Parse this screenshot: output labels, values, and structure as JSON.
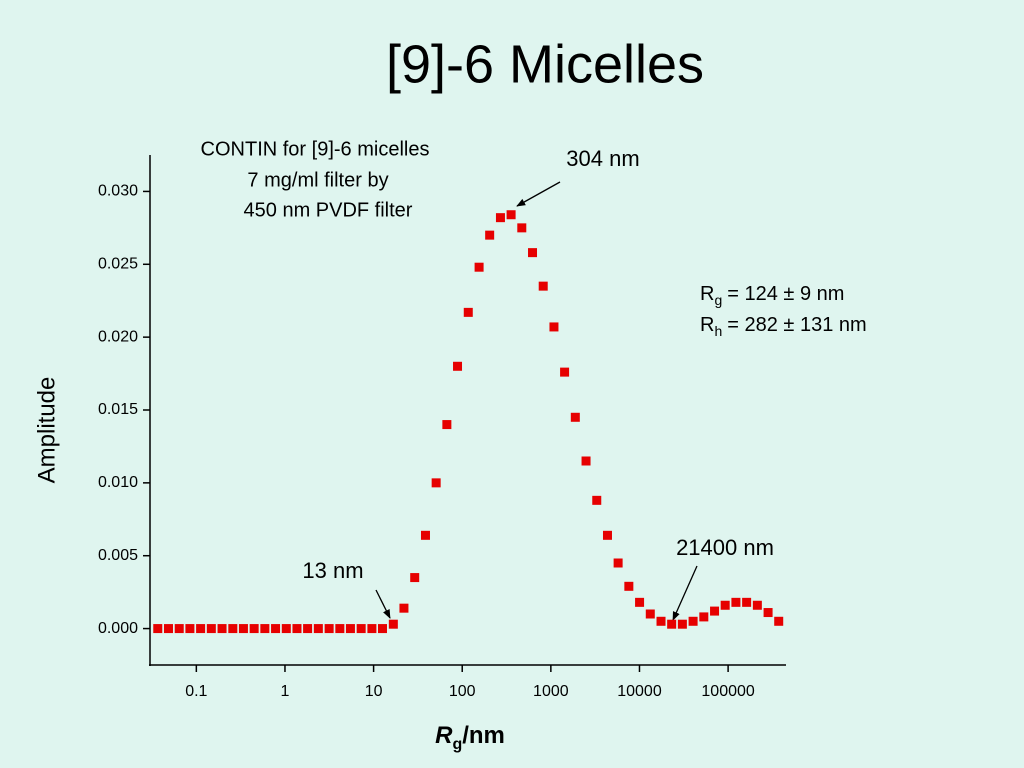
{
  "chart_data": {
    "type": "scatter",
    "title": "[9]-6 Micelles",
    "y_label": "Amplitude",
    "x_label": {
      "symbol": "R",
      "sub": "g",
      "unit": "/nm"
    },
    "x_scale": "log",
    "color": "#e60000",
    "xlim": [
      0.03,
      450000
    ],
    "ylim": [
      -0.0025,
      0.0325
    ],
    "xticks": [
      0.1,
      1,
      10,
      100,
      1000,
      10000,
      100000
    ],
    "yticks": [
      {
        "value": 0,
        "label": "0.000"
      },
      0.005,
      {
        "value": 0.01,
        "label": "0.010"
      },
      0.015,
      {
        "value": 0.02,
        "label": "0.020"
      },
      0.025,
      {
        "value": 0.03,
        "label": "0.030"
      }
    ],
    "x": [
      0.0367,
      0.0485,
      0.0641,
      0.0846,
      0.1117,
      0.1476,
      0.195,
      0.258,
      0.34,
      0.449,
      0.593,
      0.783,
      1.035,
      1.366,
      1.8,
      2.38,
      3.15,
      4.16,
      5.48,
      7.24,
      9.57,
      12.6,
      16.7,
      22.0,
      29.1,
      38.5,
      50.8,
      67.1,
      88.5,
      117,
      155,
      204,
      270,
      356,
      470,
      621,
      820,
      1084,
      1429,
      1888,
      2495,
      3296,
      4355,
      5741,
      7586,
      10023,
      13240,
      17500,
      23070,
      30480,
      40270,
      53210,
      70310,
      92680,
      122500,
      161800,
      213800,
      282500,
      372400
    ],
    "values": [
      0,
      0,
      0,
      0,
      0,
      0,
      0,
      0,
      0,
      0,
      0,
      0,
      0,
      0,
      0,
      0,
      0,
      0,
      0,
      0,
      0,
      0,
      0.0003,
      0.0014,
      0.0035,
      0.0064,
      0.01,
      0.014,
      0.018,
      0.0217,
      0.0248,
      0.027,
      0.0282,
      0.0284,
      0.0275,
      0.0258,
      0.0235,
      0.0207,
      0.0176,
      0.0145,
      0.0115,
      0.0088,
      0.0064,
      0.0045,
      0.0029,
      0.0018,
      0.001,
      0.0005,
      0.0003,
      0.0003,
      0.0005,
      0.0008,
      0.0012,
      0.0016,
      0.0018,
      0.0018,
      0.0016,
      0.0011,
      0.0005
    ],
    "annotations": {
      "box": [
        "CONTIN for [9]-6 micelles",
        "7 mg/ml filter by",
        "450 nm PVDF filter"
      ],
      "peak": "304 nm",
      "low": "13 nm",
      "high": "21400 nm",
      "rg": {
        "symbol": "R",
        "sub": "g",
        "text": "= 124 ± 9 nm"
      },
      "rh": {
        "symbol": "R",
        "sub": "h",
        "text": "= 282 ± 131 nm"
      }
    }
  }
}
